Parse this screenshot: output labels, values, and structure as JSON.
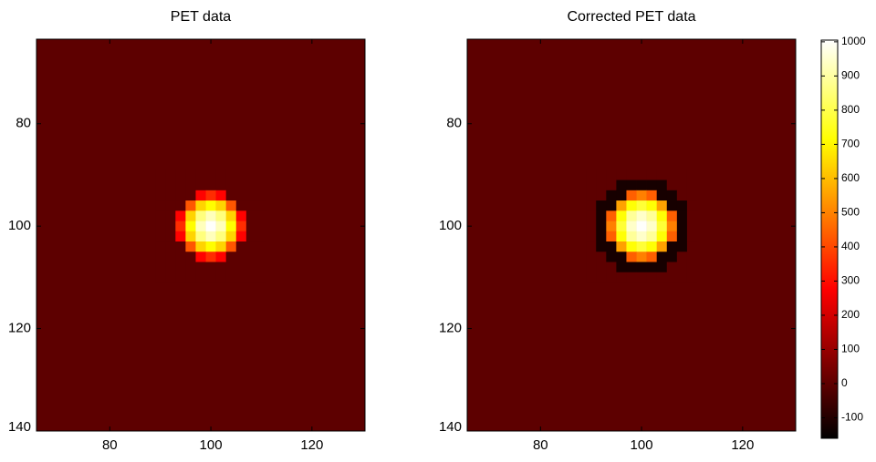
{
  "chart_data": [
    {
      "type": "image",
      "title": "PET data",
      "xlim": [
        65.5,
        130.5
      ],
      "ylim": [
        63.5,
        140
      ],
      "xticks": [
        80,
        100,
        120
      ],
      "yticks": [
        80,
        100,
        120,
        140
      ],
      "colormap": "hot",
      "clim": [
        -160,
        1005
      ],
      "fill_value": 0,
      "x": [
        90,
        92,
        94,
        96,
        98,
        100,
        102,
        104,
        106,
        108,
        110
      ],
      "y": [
        90,
        92,
        94,
        96,
        98,
        100,
        102,
        104,
        106,
        108,
        110
      ],
      "z": [
        [
          0,
          0,
          0,
          0,
          0,
          0,
          0,
          0,
          0,
          0,
          0
        ],
        [
          0,
          0,
          0,
          0,
          0,
          0,
          0,
          0,
          0,
          0,
          0
        ],
        [
          0,
          0,
          0,
          0,
          280,
          352,
          280,
          0,
          0,
          0,
          0
        ],
        [
          0,
          0,
          0,
          424,
          640,
          712,
          640,
          424,
          0,
          0,
          0
        ],
        [
          0,
          0,
          280,
          640,
          856,
          928,
          856,
          640,
          280,
          0,
          0
        ],
        [
          0,
          0,
          352,
          712,
          928,
          1000,
          928,
          712,
          352,
          0,
          0
        ],
        [
          0,
          0,
          280,
          640,
          856,
          928,
          856,
          640,
          280,
          0,
          0
        ],
        [
          0,
          0,
          0,
          424,
          640,
          712,
          640,
          424,
          0,
          0,
          0
        ],
        [
          0,
          0,
          0,
          0,
          280,
          352,
          280,
          0,
          0,
          0,
          0
        ],
        [
          0,
          0,
          0,
          0,
          0,
          0,
          0,
          0,
          0,
          0,
          0
        ],
        [
          0,
          0,
          0,
          0,
          0,
          0,
          0,
          0,
          0,
          0,
          0
        ]
      ]
    },
    {
      "type": "image",
      "title": "Corrected PET data",
      "xlim": [
        65.5,
        130.5
      ],
      "ylim": [
        63.5,
        140
      ],
      "xticks": [
        80,
        100,
        120
      ],
      "yticks": [
        80,
        100,
        120,
        140
      ],
      "colormap": "hot",
      "clim": [
        -160,
        1005
      ],
      "fill_value": 0,
      "colorbar_ticks": [
        -100,
        0,
        100,
        200,
        300,
        400,
        500,
        600,
        700,
        800,
        900,
        1000
      ],
      "x": [
        90,
        92,
        94,
        96,
        98,
        100,
        102,
        104,
        106,
        108,
        110
      ],
      "y": [
        90,
        92,
        94,
        96,
        98,
        100,
        102,
        104,
        106,
        108,
        110
      ],
      "z": [
        [
          0,
          0,
          0,
          0,
          0,
          0,
          0,
          0,
          0,
          0,
          0
        ],
        [
          0,
          0,
          0,
          -120,
          -120,
          -120,
          -120,
          -120,
          0,
          0,
          0
        ],
        [
          0,
          0,
          -120,
          -120,
          440,
          496,
          440,
          -120,
          -120,
          0,
          0
        ],
        [
          0,
          -120,
          -120,
          552,
          720,
          776,
          720,
          552,
          -120,
          -120,
          0
        ],
        [
          0,
          -120,
          440,
          720,
          888,
          944,
          888,
          720,
          440,
          -120,
          0
        ],
        [
          0,
          -120,
          496,
          776,
          944,
          1000,
          944,
          776,
          496,
          -120,
          0
        ],
        [
          0,
          -120,
          440,
          720,
          888,
          944,
          888,
          720,
          440,
          -120,
          0
        ],
        [
          0,
          -120,
          -120,
          552,
          720,
          776,
          720,
          552,
          -120,
          -120,
          0
        ],
        [
          0,
          0,
          -120,
          -120,
          440,
          496,
          440,
          -120,
          -120,
          0,
          0
        ],
        [
          0,
          0,
          0,
          -120,
          -120,
          -120,
          -120,
          -120,
          0,
          0,
          0
        ],
        [
          0,
          0,
          0,
          0,
          0,
          0,
          0,
          0,
          0,
          0,
          0
        ]
      ]
    }
  ]
}
